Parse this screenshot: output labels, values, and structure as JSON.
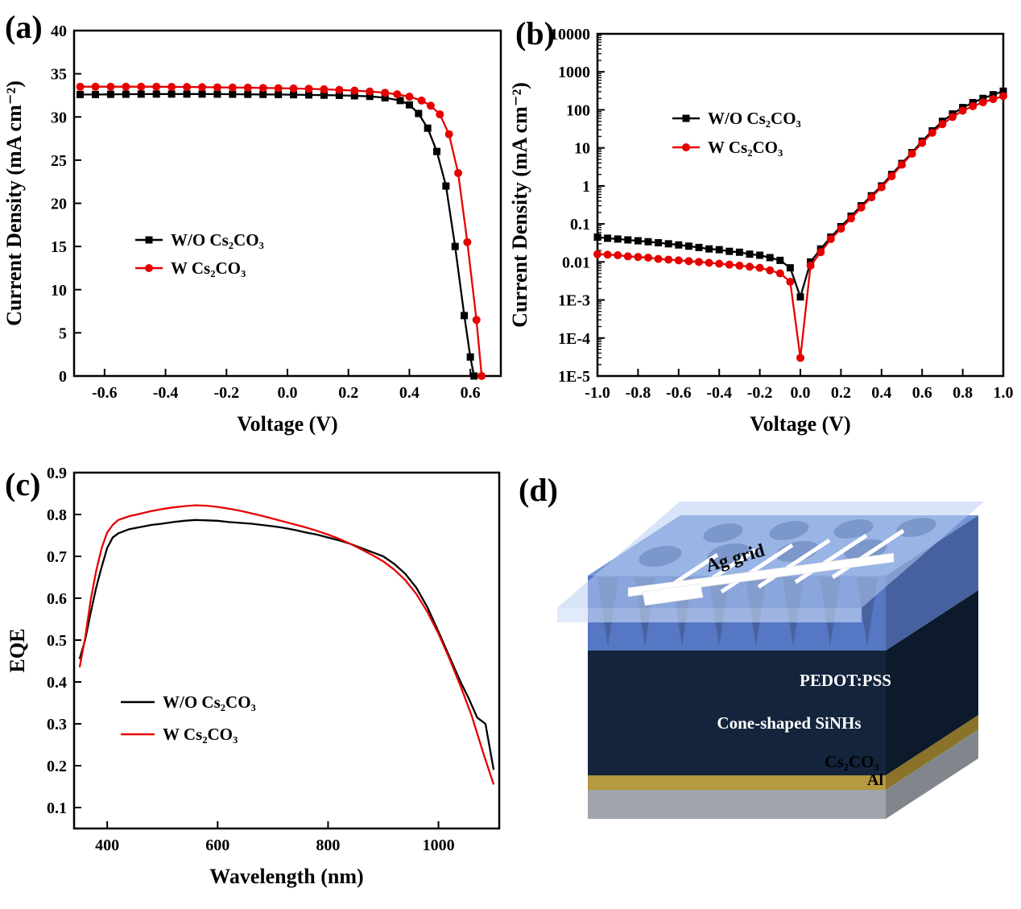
{
  "figure": {
    "background": "#ffffff",
    "panels": {
      "a": {
        "label": "(a)"
      },
      "b": {
        "label": "(b)"
      },
      "c": {
        "label": "(c)"
      },
      "d": {
        "label": "(d)"
      }
    }
  },
  "colors": {
    "black": "#000000",
    "red": "#e60000"
  },
  "chart_data": [
    {
      "panel": "a",
      "type": "line",
      "title": "",
      "xlabel": "Voltage (V)",
      "ylabel": "Current Density (mA cm⁻²)",
      "xlim": [
        -0.7,
        0.7
      ],
      "ylim": [
        0,
        40
      ],
      "yscale": "linear",
      "grid": false,
      "legend_position": "center-left",
      "xticks": {
        "values": [
          -0.6,
          -0.4,
          -0.2,
          0.0,
          0.2,
          0.4,
          0.6
        ],
        "labels": [
          "-0.6",
          "-0.4",
          "-0.2",
          "0.0",
          "0.2",
          "0.4",
          "0.6"
        ]
      },
      "yticks": {
        "values": [
          0,
          5,
          10,
          15,
          20,
          25,
          30,
          35,
          40
        ],
        "labels": [
          "0",
          "5",
          "10",
          "15",
          "20",
          "25",
          "30",
          "35",
          "40"
        ]
      },
      "series": [
        {
          "name": "W/O Cs₂CO₃",
          "color": "#000000",
          "marker": "square",
          "x": [
            -0.68,
            -0.63,
            -0.58,
            -0.53,
            -0.48,
            -0.43,
            -0.38,
            -0.33,
            -0.28,
            -0.23,
            -0.18,
            -0.13,
            -0.08,
            -0.03,
            0.02,
            0.07,
            0.12,
            0.17,
            0.22,
            0.27,
            0.32,
            0.37,
            0.4,
            0.43,
            0.46,
            0.49,
            0.52,
            0.55,
            0.58,
            0.6,
            0.612
          ],
          "y": [
            32.6,
            32.6,
            32.62,
            32.63,
            32.64,
            32.65,
            32.65,
            32.65,
            32.65,
            32.64,
            32.63,
            32.62,
            32.61,
            32.6,
            32.58,
            32.55,
            32.52,
            32.5,
            32.45,
            32.38,
            32.22,
            31.9,
            31.4,
            30.4,
            28.7,
            26,
            22,
            15,
            7,
            2.2,
            0
          ]
        },
        {
          "name": "W  Cs₂CO₃",
          "color": "#e60000",
          "marker": "circle",
          "x": [
            -0.68,
            -0.63,
            -0.58,
            -0.53,
            -0.48,
            -0.43,
            -0.38,
            -0.33,
            -0.28,
            -0.23,
            -0.18,
            -0.13,
            -0.08,
            -0.03,
            0.02,
            0.07,
            0.12,
            0.17,
            0.22,
            0.27,
            0.32,
            0.36,
            0.4,
            0.44,
            0.47,
            0.5,
            0.53,
            0.56,
            0.59,
            0.62,
            0.637
          ],
          "y": [
            33.5,
            33.5,
            33.5,
            33.5,
            33.5,
            33.5,
            33.48,
            33.47,
            33.45,
            33.43,
            33.41,
            33.39,
            33.36,
            33.33,
            33.3,
            33.26,
            33.2,
            33.13,
            33.05,
            32.95,
            32.8,
            32.62,
            32.35,
            31.9,
            31.3,
            30.3,
            28,
            23.5,
            15.5,
            6.5,
            0
          ]
        }
      ]
    },
    {
      "panel": "b",
      "type": "line",
      "title": "",
      "xlabel": "Voltage (V)",
      "ylabel": "Current Density (mA cm⁻²)",
      "xlim": [
        -1.0,
        1.0
      ],
      "ylim": [
        1e-05,
        10000
      ],
      "yscale": "log",
      "minor_ticks": true,
      "grid": false,
      "legend_position": "upper-left",
      "xticks": {
        "values": [
          -1.0,
          -0.8,
          -0.6,
          -0.4,
          -0.2,
          0.0,
          0.2,
          0.4,
          0.6,
          0.8,
          1.0
        ],
        "labels": [
          "-1.0",
          "-0.8",
          "-0.6",
          "-0.4",
          "-0.2",
          "0.0",
          "0.2",
          "0.4",
          "0.6",
          "0.8",
          "1.0"
        ]
      },
      "yticks": {
        "values": [
          1e-05,
          0.0001,
          0.001,
          0.01,
          0.1,
          1,
          10,
          100,
          1000,
          10000
        ],
        "labels": [
          "1E-5",
          "1E-4",
          "1E-3",
          "0.01",
          "0.1",
          "1",
          "10",
          "100",
          "1000",
          "10000"
        ]
      },
      "series": [
        {
          "name": "W/O Cs₂CO₃",
          "color": "#000000",
          "marker": "square",
          "x": [
            -1,
            -0.95,
            -0.9,
            -0.85,
            -0.8,
            -0.75,
            -0.7,
            -0.65,
            -0.6,
            -0.55,
            -0.5,
            -0.45,
            -0.4,
            -0.35,
            -0.3,
            -0.25,
            -0.2,
            -0.15,
            -0.1,
            -0.05,
            0,
            0.05,
            0.1,
            0.15,
            0.2,
            0.25,
            0.3,
            0.35,
            0.4,
            0.45,
            0.5,
            0.55,
            0.6,
            0.65,
            0.7,
            0.75,
            0.8,
            0.85,
            0.9,
            0.95,
            1
          ],
          "y": [
            0.045,
            0.042,
            0.04,
            0.038,
            0.036,
            0.034,
            0.032,
            0.03,
            0.028,
            0.026,
            0.024,
            0.022,
            0.021,
            0.019,
            0.018,
            0.016,
            0.015,
            0.013,
            0.011,
            0.007,
            0.0012,
            0.01,
            0.022,
            0.045,
            0.085,
            0.16,
            0.3,
            0.55,
            1,
            2,
            3.9,
            7.5,
            15,
            28,
            50,
            78,
            115,
            155,
            200,
            250,
            310
          ]
        },
        {
          "name": "W  Cs₂CO₃",
          "color": "#e60000",
          "marker": "circle",
          "x": [
            -1,
            -0.95,
            -0.9,
            -0.85,
            -0.8,
            -0.75,
            -0.7,
            -0.65,
            -0.6,
            -0.55,
            -0.5,
            -0.45,
            -0.4,
            -0.35,
            -0.3,
            -0.25,
            -0.2,
            -0.15,
            -0.1,
            -0.05,
            0,
            0.05,
            0.1,
            0.15,
            0.2,
            0.25,
            0.3,
            0.35,
            0.4,
            0.45,
            0.5,
            0.55,
            0.6,
            0.65,
            0.7,
            0.75,
            0.8,
            0.85,
            0.9,
            0.95,
            1
          ],
          "y": [
            0.016,
            0.0155,
            0.015,
            0.014,
            0.0135,
            0.013,
            0.012,
            0.0115,
            0.011,
            0.0105,
            0.01,
            0.0095,
            0.009,
            0.0085,
            0.008,
            0.0075,
            0.007,
            0.006,
            0.005,
            0.003,
            3e-05,
            0.008,
            0.018,
            0.04,
            0.075,
            0.14,
            0.27,
            0.5,
            0.92,
            1.8,
            3.6,
            7,
            13.5,
            25,
            42,
            65,
            95,
            125,
            158,
            192,
            230
          ]
        }
      ]
    },
    {
      "panel": "c",
      "type": "line",
      "title": "",
      "xlabel": "Wavelength (nm)",
      "ylabel": "EQE",
      "xlim": [
        340,
        1110
      ],
      "ylim": [
        0.05,
        0.9
      ],
      "yscale": "linear",
      "grid": false,
      "legend_position": "lower-left",
      "xticks": {
        "values": [
          400,
          600,
          800,
          1000
        ],
        "labels": [
          "400",
          "600",
          "800",
          "1000"
        ]
      },
      "yticks": {
        "values": [
          0.1,
          0.2,
          0.3,
          0.4,
          0.5,
          0.6,
          0.7,
          0.8,
          0.9
        ],
        "labels": [
          "0.1",
          "0.2",
          "0.3",
          "0.4",
          "0.5",
          "0.6",
          "0.7",
          "0.8",
          "0.9"
        ]
      },
      "series": [
        {
          "name": "W/O Cs₂CO₃",
          "color": "#000000",
          "marker": null,
          "x": [
            350,
            360,
            370,
            380,
            390,
            400,
            410,
            420,
            440,
            460,
            480,
            500,
            520,
            540,
            560,
            580,
            600,
            620,
            640,
            660,
            680,
            700,
            720,
            740,
            760,
            780,
            800,
            820,
            840,
            860,
            880,
            900,
            920,
            940,
            960,
            980,
            1000,
            1020,
            1040,
            1055,
            1070,
            1085,
            1100
          ],
          "y": [
            0.455,
            0.5,
            0.565,
            0.625,
            0.675,
            0.72,
            0.745,
            0.755,
            0.765,
            0.77,
            0.775,
            0.778,
            0.782,
            0.785,
            0.787,
            0.786,
            0.785,
            0.782,
            0.78,
            0.778,
            0.775,
            0.772,
            0.768,
            0.763,
            0.757,
            0.752,
            0.745,
            0.738,
            0.73,
            0.72,
            0.71,
            0.7,
            0.682,
            0.658,
            0.625,
            0.578,
            0.52,
            0.46,
            0.4,
            0.36,
            0.315,
            0.3,
            0.19
          ]
        },
        {
          "name": "W  Cs₂CO₃",
          "color": "#e60000",
          "marker": null,
          "x": [
            350,
            360,
            370,
            380,
            390,
            400,
            410,
            420,
            440,
            460,
            480,
            500,
            520,
            540,
            560,
            580,
            600,
            620,
            640,
            660,
            680,
            700,
            720,
            740,
            760,
            780,
            800,
            820,
            840,
            860,
            880,
            900,
            920,
            940,
            960,
            980,
            1000,
            1020,
            1040,
            1060,
            1080,
            1100
          ],
          "y": [
            0.435,
            0.505,
            0.595,
            0.665,
            0.72,
            0.757,
            0.775,
            0.787,
            0.796,
            0.802,
            0.808,
            0.813,
            0.817,
            0.82,
            0.822,
            0.821,
            0.818,
            0.814,
            0.809,
            0.803,
            0.797,
            0.79,
            0.783,
            0.776,
            0.769,
            0.761,
            0.752,
            0.742,
            0.73,
            0.717,
            0.703,
            0.688,
            0.668,
            0.643,
            0.61,
            0.567,
            0.515,
            0.455,
            0.39,
            0.32,
            0.235,
            0.155
          ]
        }
      ]
    }
  ],
  "schematic": {
    "labels": {
      "ag_grid": "Ag grid",
      "pedot": "PEDOT:PSS",
      "sinhs": "Cone-shaped SiNHs",
      "cs2co3": "Cs₂CO₃",
      "al": "Al"
    },
    "layer_colors": {
      "pedot_film": "#b8cdf0",
      "sinh_top": "#7495d8",
      "sinh_front": "#5577c4",
      "sinh_dark": "#14243c",
      "cs2co3": "#b5983f",
      "al": "#9fa5ab",
      "ag": "#ffffff"
    }
  }
}
